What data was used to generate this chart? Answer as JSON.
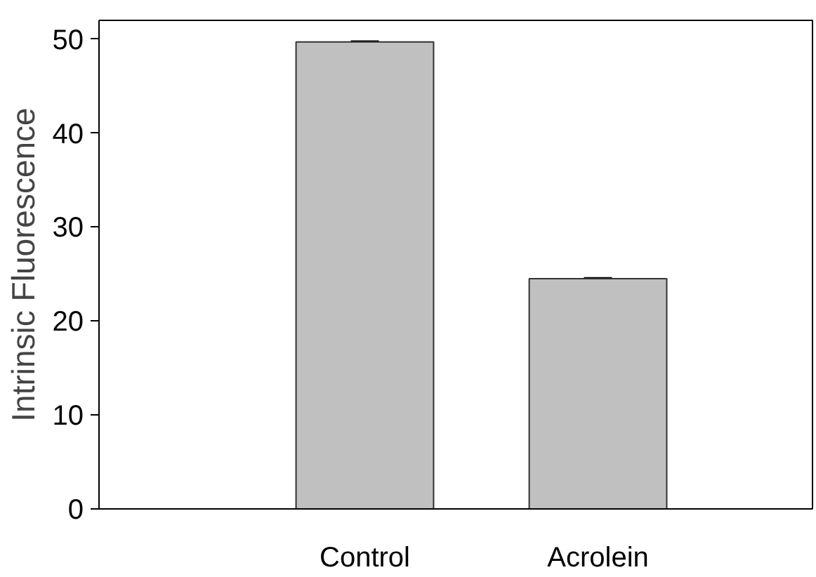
{
  "chart_data": {
    "type": "bar",
    "ylabel": "Intrinsic Fluorescence",
    "categories": [
      "Control",
      "Acrolein"
    ],
    "values": [
      49.7,
      24.5
    ],
    "errors": [
      0.1,
      0.1
    ],
    "color": "#c0c0c0",
    "ylim": [
      0,
      52
    ],
    "yticks": [
      0,
      10,
      20,
      30,
      40,
      50
    ],
    "grid": false
  }
}
